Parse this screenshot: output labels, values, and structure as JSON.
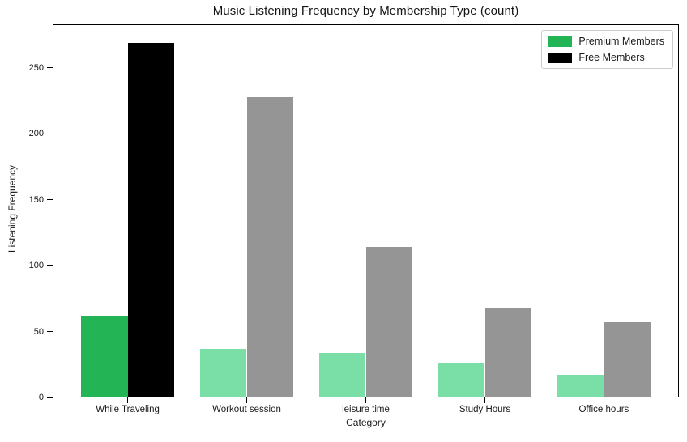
{
  "chart_data": {
    "type": "bar",
    "title": "Music Listening Frequency by Membership Type (count)",
    "xlabel": "Category",
    "ylabel": "Listening Frequency",
    "categories": [
      "While Traveling",
      "Workout session",
      "leisure time",
      "Study Hours",
      "Office hours"
    ],
    "series": [
      {
        "name": "Premium Members",
        "values": [
          62,
          37,
          34,
          26,
          17
        ],
        "color": "#22b455",
        "muted_color": "#7adfa7"
      },
      {
        "name": "Free Members",
        "values": [
          269,
          228,
          114,
          68,
          57
        ],
        "color": "#000000",
        "muted_color": "#959595"
      }
    ],
    "highlight_category_index": 0,
    "highlight_category": "While Traveling",
    "yticks": [
      0,
      50,
      100,
      150,
      200,
      250
    ],
    "ylim": [
      0,
      283
    ],
    "bar_width_units": 0.39,
    "x_margin_units": 0.63,
    "legend_position": "upper right",
    "grid": false,
    "background_color": "#ffffff",
    "text_color": "#1a1a1a"
  }
}
